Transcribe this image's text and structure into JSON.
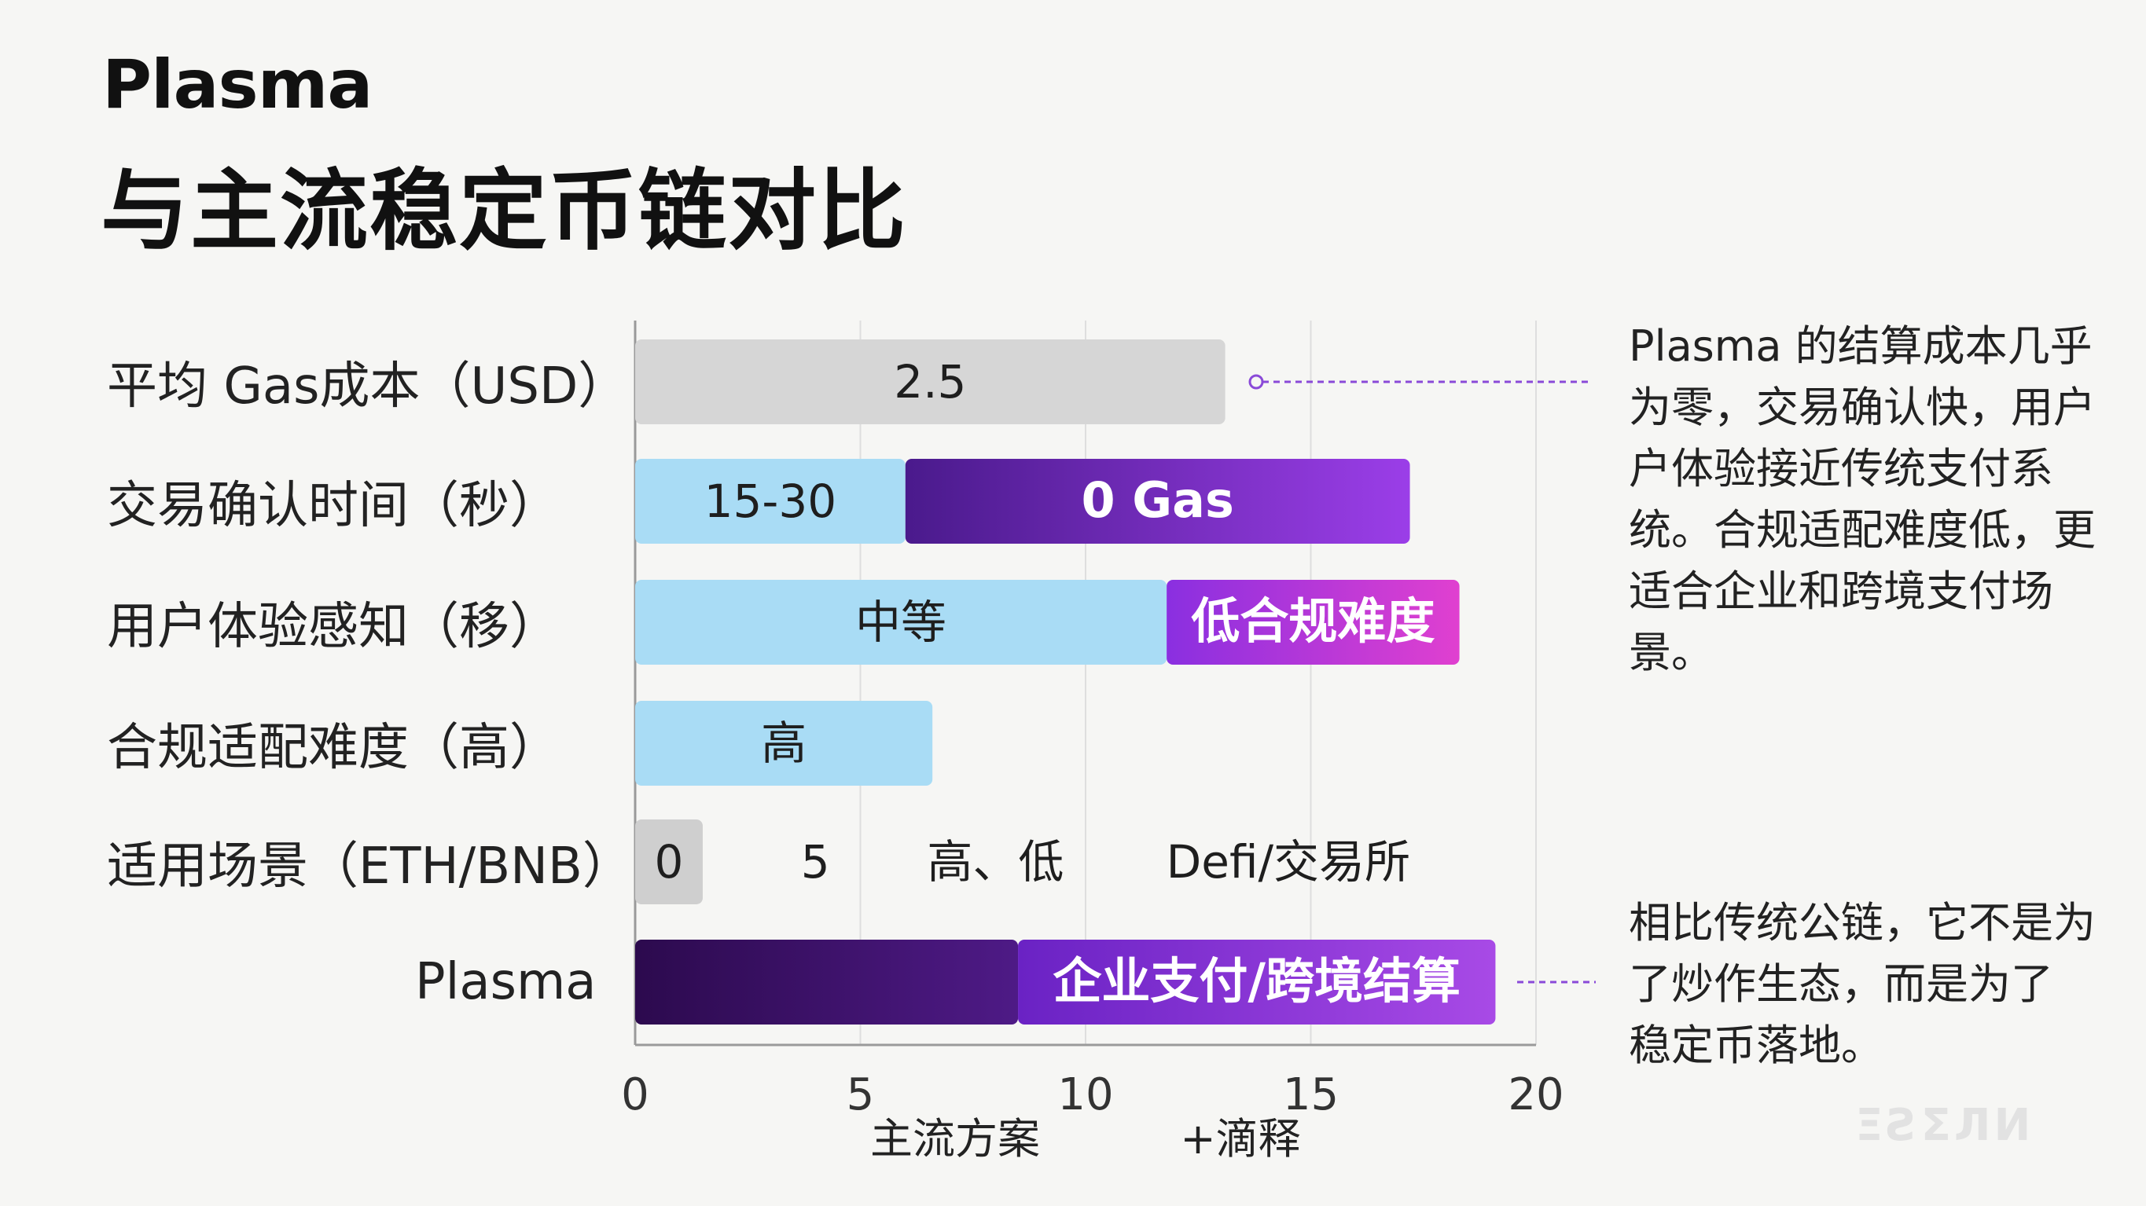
{
  "title_line1": "Plasma",
  "title_line2": "与主流稳定币链对比",
  "chart_data": {
    "type": "bar",
    "orientation": "horizontal",
    "categories": [
      "平均 Gas成本（USD）",
      "交易确认时间（秒）",
      "用户体验感知（移）",
      "合规适配难度（高）",
      "适用场景（ETH/BNB）",
      "Plasma"
    ],
    "xlim": [
      0,
      20
    ],
    "xticks": [
      "0",
      "5",
      "10",
      "15",
      "20"
    ],
    "xlabel_left": "主流方案",
    "xlabel_right": "+滴释",
    "grid": true,
    "bars": [
      {
        "row": 0,
        "start": 0,
        "end": 13.1,
        "label": "2.5",
        "color": "#d6d6d6"
      },
      {
        "row": 1,
        "start": 0,
        "end": 6,
        "label": "15-30",
        "color": "#a9dcf5"
      },
      {
        "row": 1,
        "start": 6,
        "end": 17.2,
        "label": "0 Gas",
        "color": "#6a2ab0"
      },
      {
        "row": 2,
        "start": 0,
        "end": 11.8,
        "label": "中等",
        "color": "#a9dcf5"
      },
      {
        "row": 2,
        "start": 11.8,
        "end": 18.3,
        "label": "低合规难度",
        "color": "#b53de0"
      },
      {
        "row": 3,
        "start": 0,
        "end": 6.6,
        "label": "高",
        "color": "#a9dcf5"
      },
      {
        "row": 4,
        "start": 0,
        "end": 1.5,
        "label": "0",
        "color": "#cfcfcf"
      },
      {
        "row": 5,
        "start": 0,
        "end": 8.5,
        "label": "",
        "color": "#3a1060"
      },
      {
        "row": 5,
        "start": 8.5,
        "end": 19.1,
        "label": "企业支付/跨境结算",
        "color": "#8a3ad6"
      }
    ],
    "row_texts": [
      {
        "row": 4,
        "x": 4,
        "text": "5"
      },
      {
        "row": 4,
        "x": 8,
        "text": "高、低"
      },
      {
        "row": 4,
        "x": 14.5,
        "text": "Defi/交易所"
      }
    ]
  },
  "notes": {
    "note1": [
      "Plasma 的结算成本几乎",
      "为零，交易确认快，用户",
      "户体验接近传统支付系",
      "统。合规适配难度低，更",
      "适合企业和跨境支付场",
      "景。"
    ],
    "note2": [
      "相比传统公链，它不是为",
      "了炒作生态，而是为了",
      "稳定币落地。"
    ]
  },
  "colors": {
    "accent_purple": "#7b2fd0",
    "light_blue": "#a9dcf5",
    "grey": "#d6d6d6"
  }
}
